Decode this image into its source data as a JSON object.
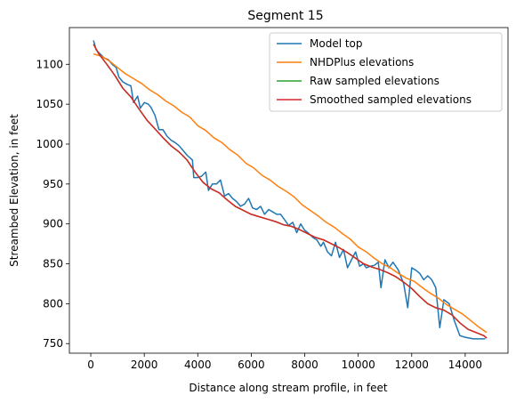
{
  "chart_data": {
    "type": "line",
    "title": "Segment 15",
    "xlabel": "Distance along stream profile, in feet",
    "ylabel": "Streambed Elevation, in feet",
    "xlim": [
      -800,
      15600
    ],
    "ylim": [
      738,
      1146
    ],
    "xticks": [
      0,
      2000,
      4000,
      6000,
      8000,
      10000,
      12000,
      14000
    ],
    "yticks": [
      750,
      800,
      850,
      900,
      950,
      1000,
      1050,
      1100
    ],
    "grid": false,
    "legend_position": "top-right",
    "colors": {
      "Model top": "#1f77b4",
      "NHDPlus elevations": "#ff7f0e",
      "Raw sampled elevations": "#2ca02c",
      "Smoothed sampled elevations": "#d62728"
    },
    "series": [
      {
        "name": "Model top",
        "x": [
          100,
          200,
          350,
          500,
          650,
          800,
          950,
          1050,
          1200,
          1350,
          1500,
          1600,
          1750,
          1850,
          2000,
          2150,
          2250,
          2400,
          2550,
          2700,
          2850,
          3000,
          3150,
          3300,
          3450,
          3600,
          3800,
          3850,
          4000,
          4150,
          4300,
          4400,
          4550,
          4700,
          4850,
          5000,
          5150,
          5300,
          5450,
          5600,
          5750,
          5900,
          6050,
          6200,
          6350,
          6500,
          6650,
          6800,
          6950,
          7100,
          7250,
          7400,
          7550,
          7700,
          7850,
          8000,
          8150,
          8300,
          8450,
          8600,
          8700,
          8850,
          9000,
          9150,
          9300,
          9450,
          9600,
          9750,
          9900,
          10050,
          10200,
          10300,
          10450,
          10600,
          10750,
          10850,
          11000,
          11150,
          11300,
          11500,
          11700,
          11850,
          12000,
          12150,
          12300,
          12450,
          12600,
          12750,
          12900,
          13050,
          13200,
          13400,
          13600,
          13800,
          14000,
          14150,
          14300,
          14450,
          14600,
          14750
        ],
        "values": [
          1130,
          1118,
          1113,
          1108,
          1106,
          1100,
          1096,
          1084,
          1078,
          1075,
          1073,
          1052,
          1060,
          1045,
          1052,
          1050,
          1046,
          1036,
          1018,
          1018,
          1010,
          1005,
          1002,
          998,
          992,
          986,
          980,
          958,
          958,
          960,
          965,
          942,
          950,
          950,
          955,
          935,
          938,
          932,
          928,
          922,
          925,
          932,
          920,
          918,
          922,
          912,
          918,
          915,
          912,
          912,
          905,
          898,
          902,
          889,
          900,
          892,
          888,
          883,
          880,
          872,
          877,
          865,
          860,
          877,
          858,
          868,
          845,
          855,
          865,
          847,
          850,
          845,
          847,
          848,
          852,
          820,
          855,
          845,
          852,
          842,
          825,
          795,
          845,
          842,
          838,
          830,
          835,
          830,
          820,
          770,
          805,
          800,
          778,
          760,
          758,
          757,
          756,
          756,
          756,
          756
        ]
      },
      {
        "name": "NHDPlus elevations",
        "x": [
          100,
          400,
          700,
          1000,
          1300,
          1600,
          1900,
          2200,
          2500,
          2800,
          3100,
          3400,
          3700,
          4000,
          4300,
          4600,
          4900,
          5200,
          5500,
          5800,
          6100,
          6400,
          6700,
          7000,
          7300,
          7600,
          7900,
          8200,
          8500,
          8800,
          9100,
          9400,
          9700,
          10000,
          10300,
          10600,
          10900,
          11200,
          11500,
          11800,
          12100,
          12400,
          12700,
          13000,
          13300,
          13600,
          13900,
          14200,
          14500,
          14800
        ],
        "values": [
          1113,
          1110,
          1104,
          1096,
          1088,
          1082,
          1076,
          1068,
          1062,
          1054,
          1048,
          1040,
          1034,
          1023,
          1017,
          1008,
          1002,
          993,
          986,
          976,
          970,
          961,
          955,
          947,
          941,
          934,
          924,
          917,
          910,
          902,
          896,
          888,
          881,
          871,
          865,
          857,
          850,
          845,
          838,
          832,
          828,
          820,
          813,
          807,
          799,
          793,
          787,
          779,
          771,
          764
        ]
      },
      {
        "name": "Raw sampled elevations",
        "x": [
          100,
          300,
          600,
          900,
          1200,
          1500,
          1800,
          2100,
          2400,
          2700,
          3000,
          3300,
          3600,
          3900,
          4200,
          4500,
          4800,
          5100,
          5400,
          5700,
          6000,
          6300,
          6600,
          6900,
          7200,
          7500,
          7800,
          8100,
          8400,
          8700,
          9000,
          9300,
          9600,
          9900,
          10200,
          10500,
          10800,
          11100,
          11400,
          11700,
          12000,
          12300,
          12600,
          12900,
          13200,
          13500,
          13800,
          14100,
          14400,
          14700,
          14800
        ],
        "values": [
          1125,
          1113,
          1100,
          1086,
          1070,
          1059,
          1044,
          1030,
          1019,
          1008,
          998,
          990,
          980,
          965,
          952,
          944,
          939,
          930,
          922,
          917,
          912,
          909,
          906,
          903,
          899,
          897,
          893,
          888,
          883,
          880,
          875,
          870,
          864,
          857,
          850,
          846,
          843,
          839,
          834,
          827,
          819,
          809,
          800,
          795,
          792,
          786,
          776,
          768,
          764,
          760,
          757
        ]
      },
      {
        "name": "Smoothed sampled elevations",
        "x": [
          100,
          300,
          600,
          900,
          1200,
          1500,
          1800,
          2100,
          2400,
          2700,
          3000,
          3300,
          3600,
          3900,
          4200,
          4500,
          4800,
          5100,
          5400,
          5700,
          6000,
          6300,
          6600,
          6900,
          7200,
          7500,
          7800,
          8100,
          8400,
          8700,
          9000,
          9300,
          9600,
          9900,
          10200,
          10500,
          10800,
          11100,
          11400,
          11700,
          12000,
          12300,
          12600,
          12900,
          13200,
          13500,
          13800,
          14100,
          14400,
          14700,
          14800
        ],
        "values": [
          1125,
          1113,
          1100,
          1086,
          1070,
          1059,
          1044,
          1030,
          1019,
          1008,
          998,
          990,
          980,
          965,
          952,
          944,
          939,
          930,
          922,
          917,
          912,
          909,
          906,
          903,
          899,
          897,
          893,
          888,
          883,
          880,
          875,
          870,
          864,
          857,
          850,
          846,
          843,
          839,
          834,
          827,
          819,
          809,
          800,
          795,
          792,
          786,
          776,
          768,
          764,
          760,
          757
        ]
      }
    ]
  }
}
